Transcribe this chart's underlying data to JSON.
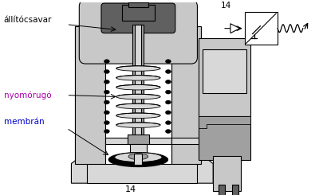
{
  "bg_color": "#ffffff",
  "body_gray": "#c8c8c8",
  "dark_gray": "#606060",
  "mid_gray": "#a0a0a0",
  "light_gray": "#d8d8d8",
  "white": "#ffffff",
  "black": "#000000",
  "label_allito": "állítócsavar",
  "label_nyomo": "nyomórugó",
  "label_membran": "membrán",
  "label_14_bottom": "14",
  "label_14_sym": "14",
  "color_nyomo": "#aa00aa",
  "color_membran": "#0000cc",
  "color_black": "#000000"
}
